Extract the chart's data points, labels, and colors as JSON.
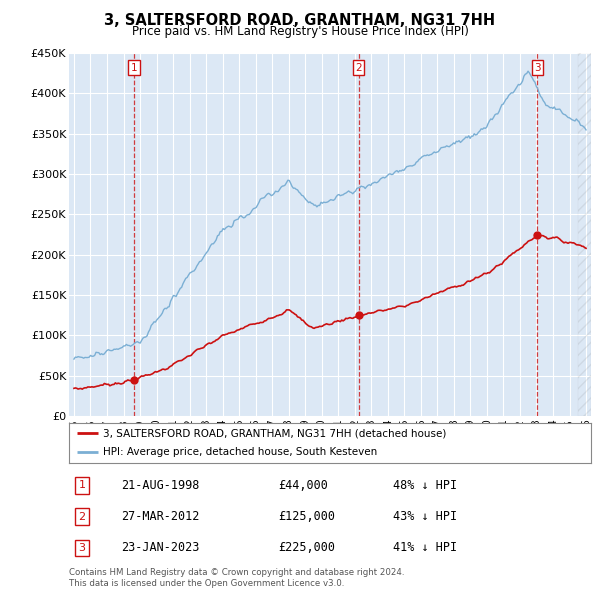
{
  "title": "3, SALTERSFORD ROAD, GRANTHAM, NG31 7HH",
  "subtitle": "Price paid vs. HM Land Registry's House Price Index (HPI)",
  "ylim": [
    0,
    450000
  ],
  "yticks": [
    0,
    50000,
    100000,
    150000,
    200000,
    250000,
    300000,
    350000,
    400000,
    450000
  ],
  "ytick_labels": [
    "£0",
    "£50K",
    "£100K",
    "£150K",
    "£200K",
    "£250K",
    "£300K",
    "£350K",
    "£400K",
    "£450K"
  ],
  "hpi_color": "#7bafd4",
  "price_color": "#cc1111",
  "background_color": "#ffffff",
  "plot_bg_color": "#dce8f5",
  "legend_border_color": "#aaaaaa",
  "legend_entries": [
    "3, SALTERSFORD ROAD, GRANTHAM, NG31 7HH (detached house)",
    "HPI: Average price, detached house, South Kesteven"
  ],
  "sale_points": [
    {
      "label": "1",
      "year": 1998.63,
      "price": 44000,
      "date_str": "21-AUG-1998",
      "pct": "48% ↓ HPI"
    },
    {
      "label": "2",
      "year": 2012.23,
      "price": 125000,
      "date_str": "27-MAR-2012",
      "pct": "43% ↓ HPI"
    },
    {
      "label": "3",
      "year": 2023.06,
      "price": 225000,
      "date_str": "23-JAN-2023",
      "pct": "41% ↓ HPI"
    }
  ],
  "footer_text": "Contains HM Land Registry data © Crown copyright and database right 2024.\nThis data is licensed under the Open Government Licence v3.0.",
  "xtick_years": [
    1995,
    1996,
    1997,
    1998,
    1999,
    2000,
    2001,
    2002,
    2003,
    2004,
    2005,
    2006,
    2007,
    2008,
    2009,
    2010,
    2011,
    2012,
    2013,
    2014,
    2015,
    2016,
    2017,
    2018,
    2019,
    2020,
    2021,
    2022,
    2023,
    2024,
    2025,
    2026
  ],
  "xlim_start": 1994.7,
  "xlim_end": 2026.3
}
